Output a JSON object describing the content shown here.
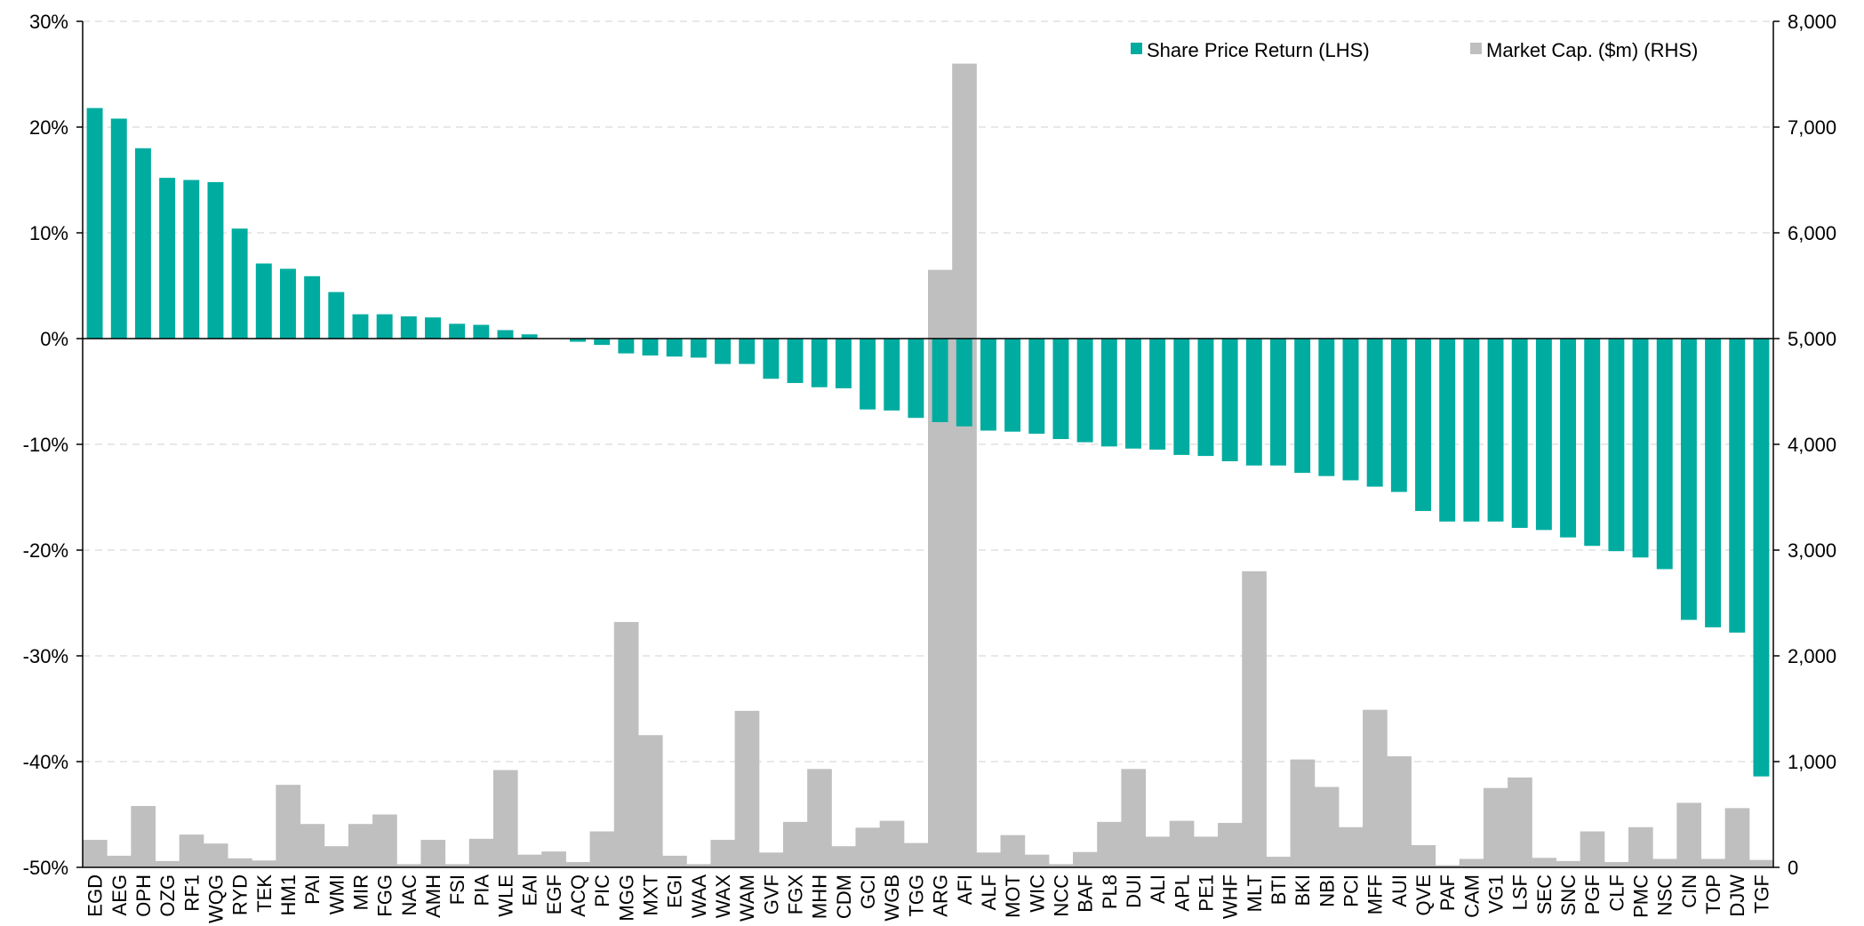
{
  "chart_data": {
    "type": "bar",
    "categories": [
      "EGD",
      "AEG",
      "OPH",
      "OZG",
      "RF1",
      "WQG",
      "RYD",
      "TEK",
      "HM1",
      "PAI",
      "WMI",
      "MIR",
      "FGG",
      "NAC",
      "AMH",
      "FSI",
      "PIA",
      "WLE",
      "EAI",
      "EGF",
      "ACQ",
      "PIC",
      "MGG",
      "MXT",
      "EGI",
      "WAA",
      "WAX",
      "WAM",
      "GVF",
      "FGX",
      "MHH",
      "CDM",
      "GCI",
      "WGB",
      "TGG",
      "ARG",
      "AFI",
      "ALF",
      "MOT",
      "WIC",
      "NCC",
      "BAF",
      "PL8",
      "DUI",
      "ALI",
      "APL",
      "PE1",
      "WHF",
      "MLT",
      "BTI",
      "BKI",
      "NBI",
      "PCI",
      "MFF",
      "AUI",
      "QVE",
      "PAF",
      "CAM",
      "VG1",
      "LSF",
      "SEC",
      "SNC",
      "PGF",
      "CLF",
      "PMC",
      "NSC",
      "CIN",
      "TOP",
      "DJW",
      "TGF"
    ],
    "series": [
      {
        "name": "Share Price Return (LHS)",
        "axis": "left",
        "color": "#00aca0",
        "values": [
          21.8,
          20.8,
          18.0,
          15.2,
          15.0,
          14.8,
          10.4,
          7.1,
          6.6,
          5.9,
          4.4,
          2.3,
          2.3,
          2.1,
          2.0,
          1.4,
          1.3,
          0.8,
          0.4,
          0.0,
          -0.3,
          -0.6,
          -1.4,
          -1.6,
          -1.7,
          -1.8,
          -2.4,
          -2.4,
          -3.8,
          -4.2,
          -4.6,
          -4.7,
          -6.7,
          -6.8,
          -7.5,
          -7.9,
          -8.3,
          -8.7,
          -8.8,
          -9.0,
          -9.5,
          -9.8,
          -10.2,
          -10.4,
          -10.5,
          -11.0,
          -11.1,
          -11.6,
          -12.0,
          -12.0,
          -12.7,
          -13.0,
          -13.4,
          -14.0,
          -14.5,
          -16.3,
          -17.3,
          -17.3,
          -17.3,
          -17.9,
          -18.1,
          -18.8,
          -19.6,
          -20.1,
          -20.7,
          -21.8,
          -26.6,
          -27.3,
          -27.8,
          -41.4
        ]
      },
      {
        "name": "Market Cap. ($m) (RHS)",
        "axis": "right",
        "color": "#bfbfbf",
        "values": [
          260,
          110,
          580,
          60,
          310,
          225,
          85,
          65,
          780,
          410,
          200,
          410,
          500,
          30,
          260,
          30,
          270,
          920,
          120,
          150,
          50,
          340,
          2320,
          1250,
          110,
          30,
          260,
          1480,
          140,
          430,
          930,
          200,
          375,
          440,
          230,
          5650,
          7600,
          140,
          305,
          120,
          30,
          145,
          430,
          930,
          290,
          440,
          290,
          420,
          2800,
          100,
          1020,
          760,
          380,
          1490,
          1050,
          210,
          20,
          80,
          750,
          850,
          90,
          60,
          340,
          50,
          380,
          80,
          610,
          80,
          560,
          70
        ]
      }
    ],
    "y_left": {
      "min": -50,
      "max": 30,
      "step": 10,
      "tick_labels": [
        "-50%",
        "-40%",
        "-30%",
        "-20%",
        "-10%",
        "0%",
        "10%",
        "20%",
        "30%"
      ]
    },
    "y_right": {
      "min": 0,
      "max": 8000,
      "step": 1000,
      "tick_labels": [
        "0",
        "1,000",
        "2,000",
        "3,000",
        "4,000",
        "5,000",
        "6,000",
        "7,000",
        "8,000"
      ]
    },
    "grid": true,
    "legend_position": "top-right",
    "legend": [
      {
        "label": "Share Price Return (LHS)",
        "color": "#00aca0"
      },
      {
        "label": "Market Cap. ($m) (RHS)",
        "color": "#bfbfbf"
      }
    ]
  }
}
